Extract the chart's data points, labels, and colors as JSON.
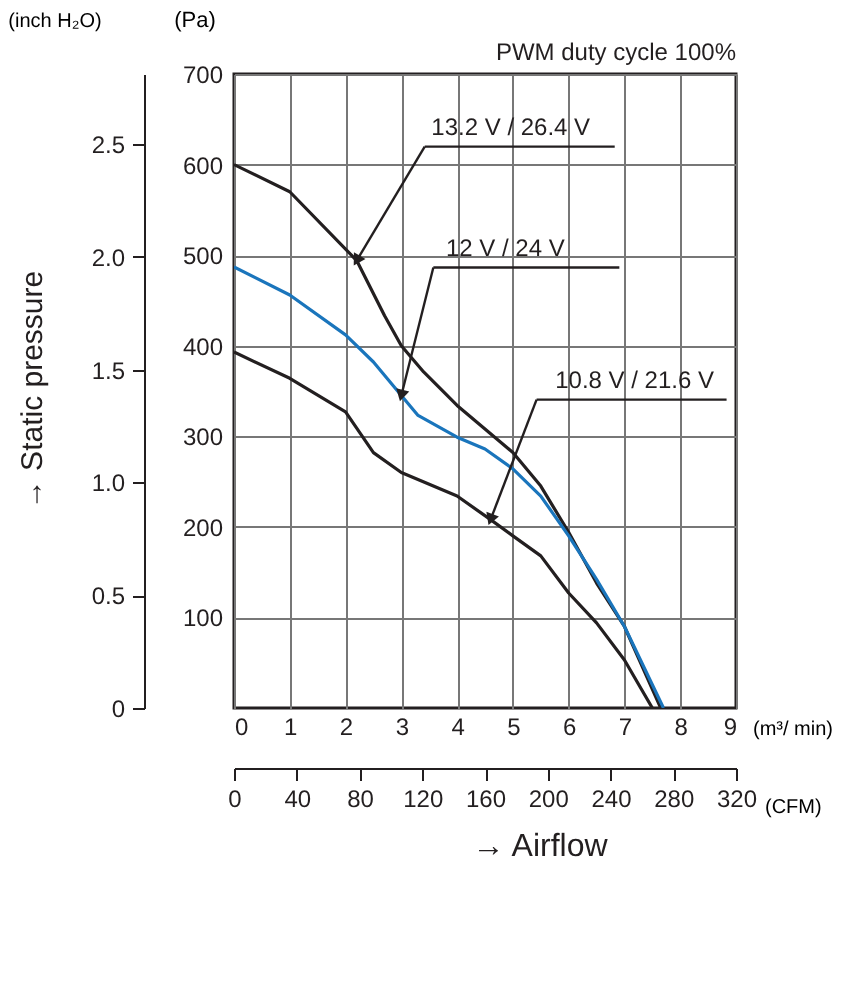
{
  "chart_data": {
    "type": "line",
    "title": "PWM duty cycle 100%",
    "xlabel": "(m³/ min)",
    "ylabel": "(Pa)",
    "y2label": "(inch H₂O)",
    "x2label": "(CFM)",
    "annotations": [
      "→ Static pressure",
      "→ Airflow"
    ],
    "xlim": [
      0,
      9
    ],
    "xticks": [
      0,
      1,
      2,
      3,
      4,
      5,
      6,
      7,
      8,
      9
    ],
    "ylim": [
      0,
      700
    ],
    "yticks": [
      100,
      200,
      300,
      400,
      500,
      600,
      700
    ],
    "y2lim": [
      0,
      2.81
    ],
    "y2ticks": [
      0,
      0.5,
      {
        "value": 1,
        "label": "1.0"
      },
      1.5,
      {
        "value": 2,
        "label": "2.0"
      },
      2.5
    ],
    "x2lim": [
      0,
      320
    ],
    "x2ticks": [
      0,
      40,
      80,
      120,
      160,
      200,
      240,
      280,
      320
    ],
    "grid": true,
    "series": [
      {
        "name": "13.2 V / 26.4 V",
        "color": "#231f20",
        "x": [
          0,
          1,
          2.2,
          2.7,
          3,
          3.4,
          4,
          5,
          5.5,
          6,
          6.5,
          7,
          7.65
        ],
        "values": [
          600,
          570,
          494,
          433,
          400,
          371,
          334,
          282,
          245,
          194,
          138,
          90,
          0
        ]
      },
      {
        "name": "12 V / 24 V",
        "color": "#1a75bc",
        "x": [
          0,
          1,
          2,
          2.5,
          3,
          3.3,
          4,
          4.5,
          5,
          5.5,
          6,
          6.5,
          7,
          7.7
        ],
        "values": [
          487,
          456,
          412,
          382,
          345,
          323,
          299,
          286,
          264,
          234,
          190,
          142,
          90,
          0
        ]
      },
      {
        "name": "10.8 V / 21.6 V",
        "color": "#231f20",
        "x": [
          0,
          1,
          2,
          2.5,
          3,
          4,
          4.6,
          5,
          5.5,
          6,
          6.5,
          7,
          7.5
        ],
        "values": [
          393,
          364,
          327,
          282,
          260,
          234,
          208,
          190,
          168,
          127,
          94,
          53,
          0
        ]
      }
    ]
  }
}
